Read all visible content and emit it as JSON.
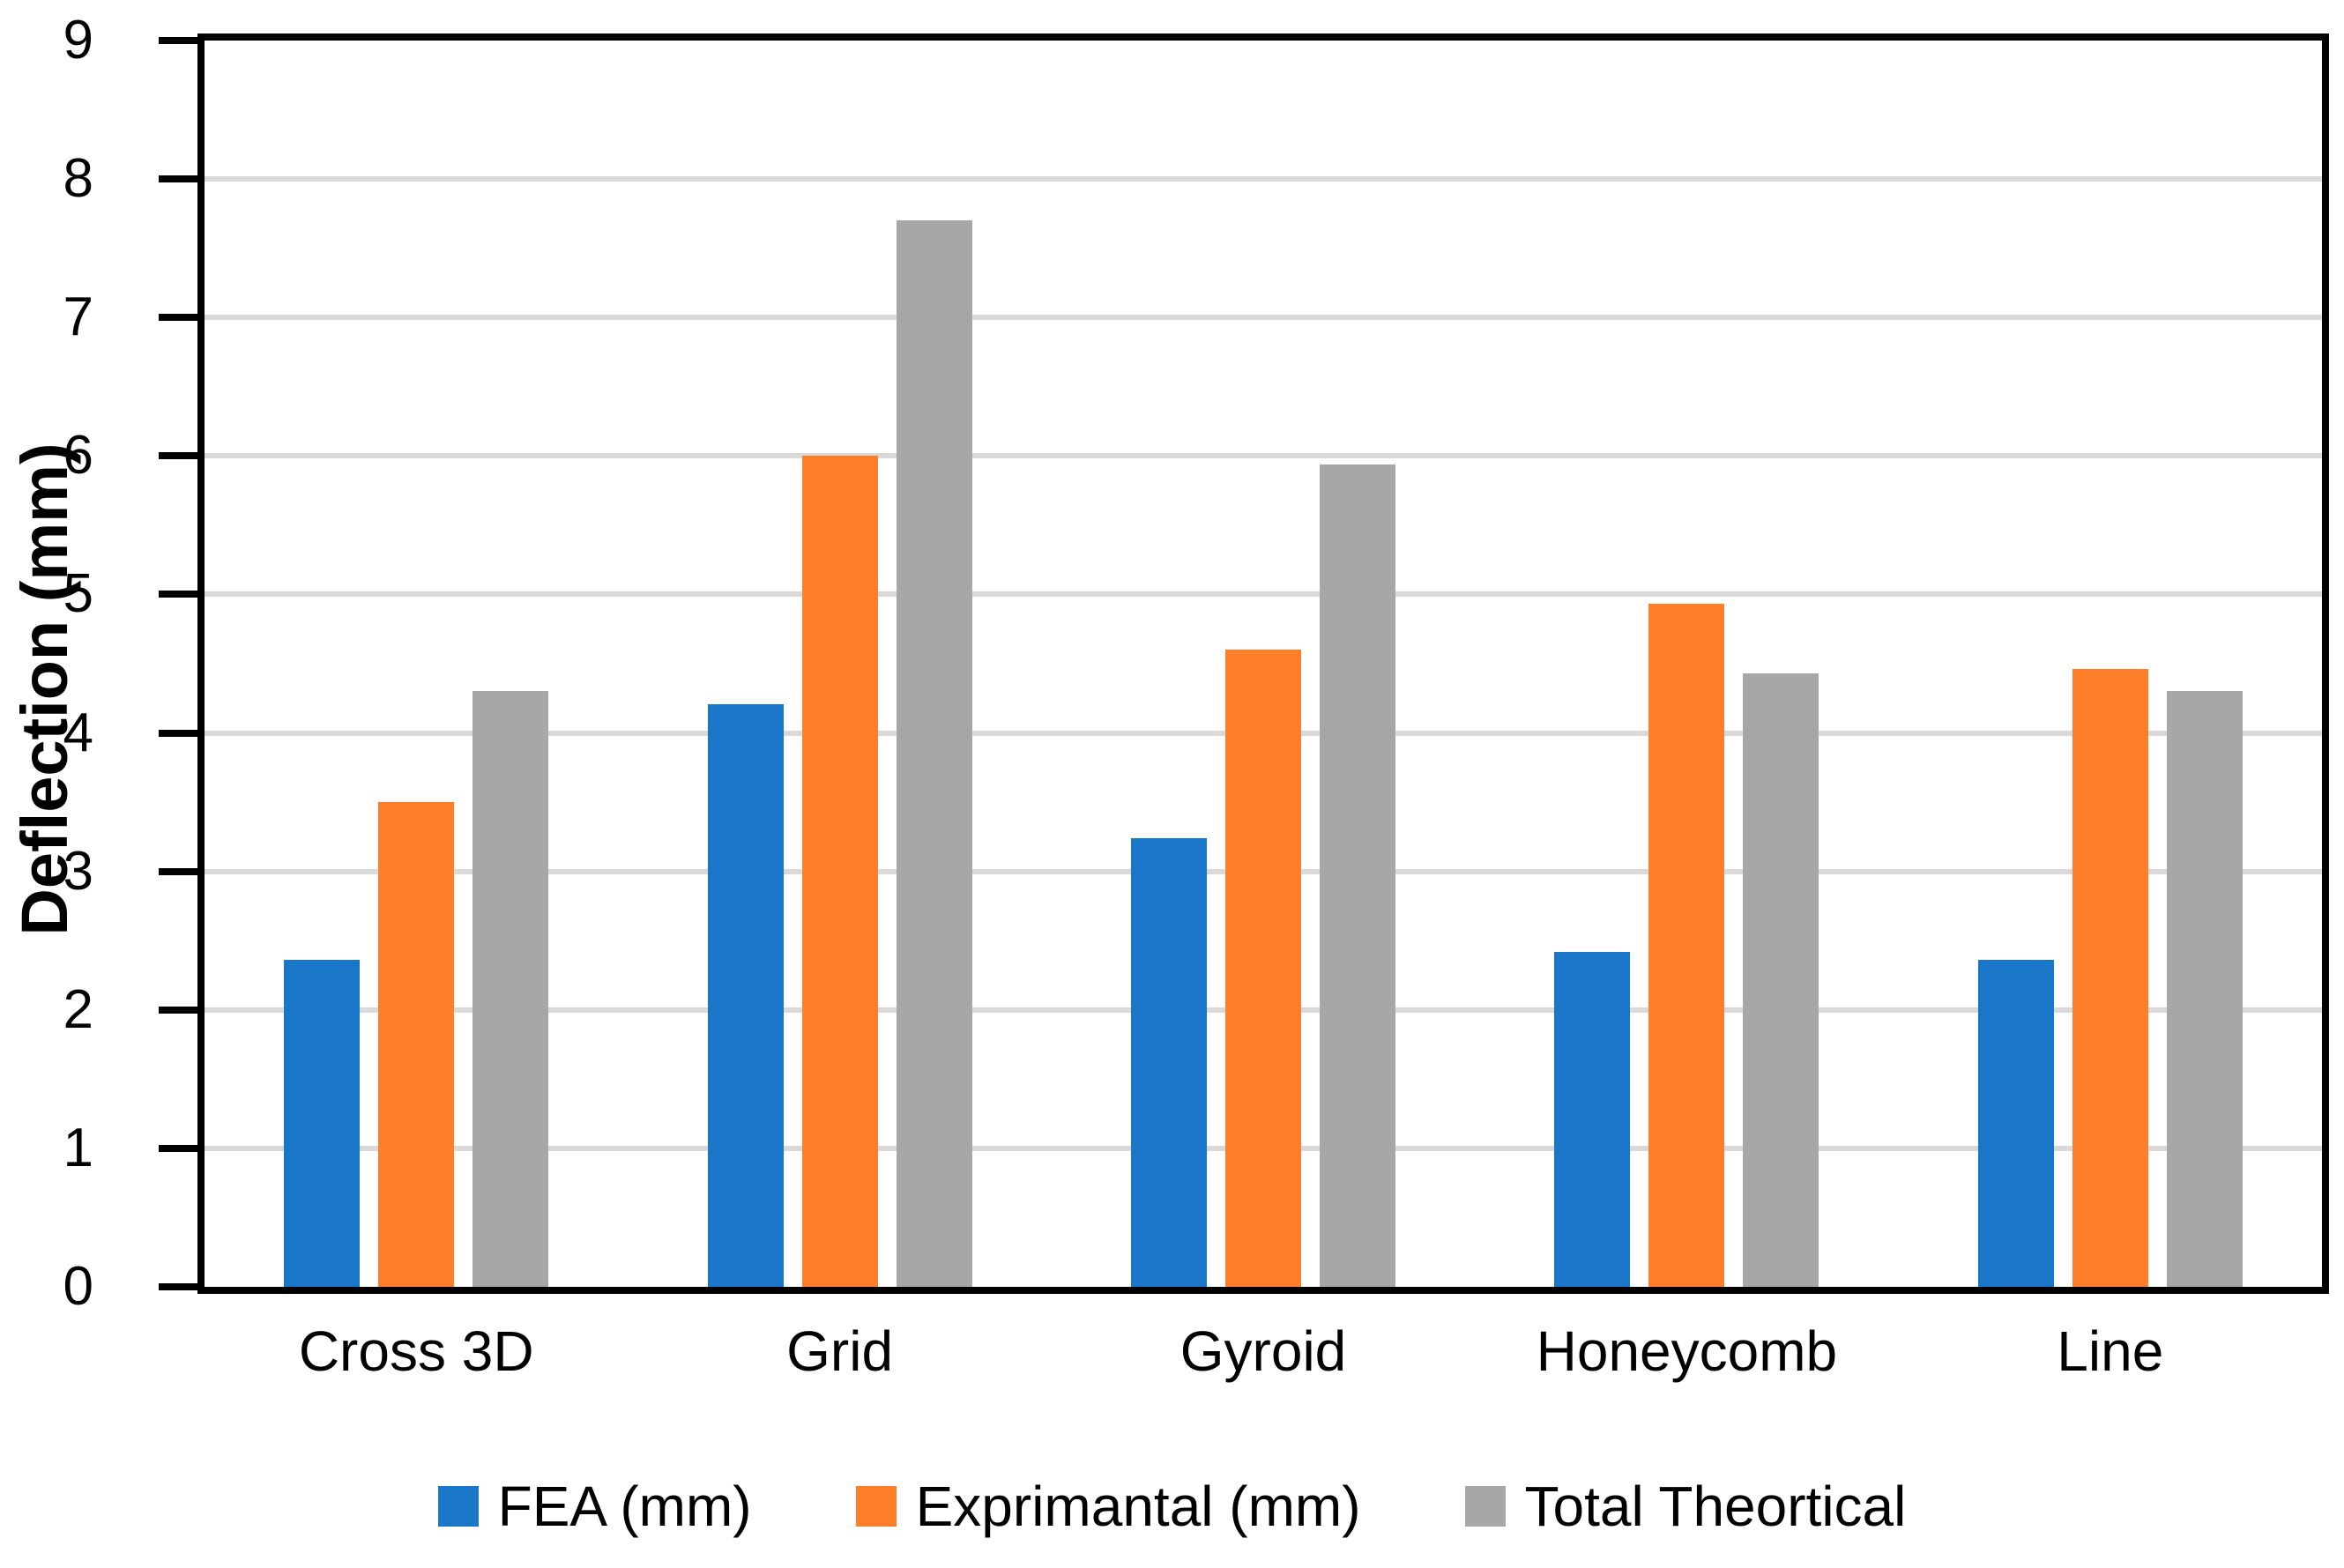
{
  "chart_data": {
    "type": "bar",
    "title": "",
    "categories": [
      "Cross 3D",
      "Grid",
      "Gyroid",
      "Honeycomb",
      "Line"
    ],
    "series": [
      {
        "name": "FEA (mm)",
        "color": "#1976C8",
        "values": [
          2.36,
          4.21,
          3.24,
          2.42,
          2.36
        ]
      },
      {
        "name": "Exprimantal (mm)",
        "color": "#FF7E29",
        "values": [
          3.5,
          6.0,
          4.6,
          4.93,
          4.46
        ]
      },
      {
        "name": "Total Theortical",
        "color": "#A7A7A7",
        "values": [
          4.3,
          7.7,
          5.94,
          4.43,
          4.3
        ]
      }
    ],
    "xlabel": "",
    "ylabel": "Deflection (mm)",
    "ylim": [
      0,
      9
    ],
    "yticks": [
      0,
      1,
      2,
      3,
      4,
      5,
      6,
      7,
      8,
      9
    ],
    "grid": "horizontal",
    "gridline_color": "#D9D9D9",
    "axis_color": "#000000",
    "plot_border": true,
    "legend_position": "bottom"
  }
}
